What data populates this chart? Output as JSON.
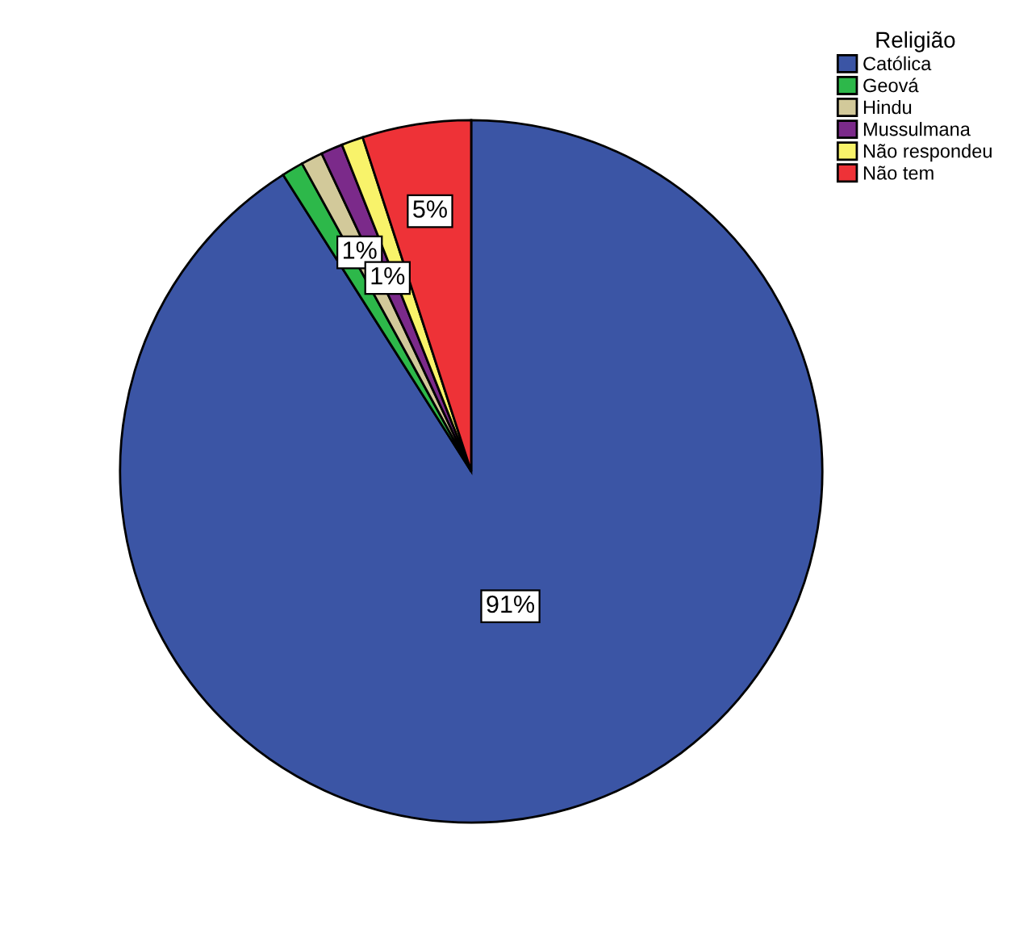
{
  "chart_data": {
    "type": "pie",
    "legend_title": "Religião",
    "legend": "top right",
    "categories": [
      "Católica",
      "Geová",
      "Hindu",
      "Mussulmana",
      "Não respondeu",
      "Não tem"
    ],
    "values": [
      91,
      1,
      1,
      1,
      1,
      5
    ],
    "colors": [
      "#3b55a5",
      "#2db84a",
      "#d2c99a",
      "#7b2a8a",
      "#f8f36a",
      "#ee3237"
    ],
    "value_labels": [
      "91%",
      null,
      "1%",
      "1%",
      null,
      "5%"
    ]
  }
}
